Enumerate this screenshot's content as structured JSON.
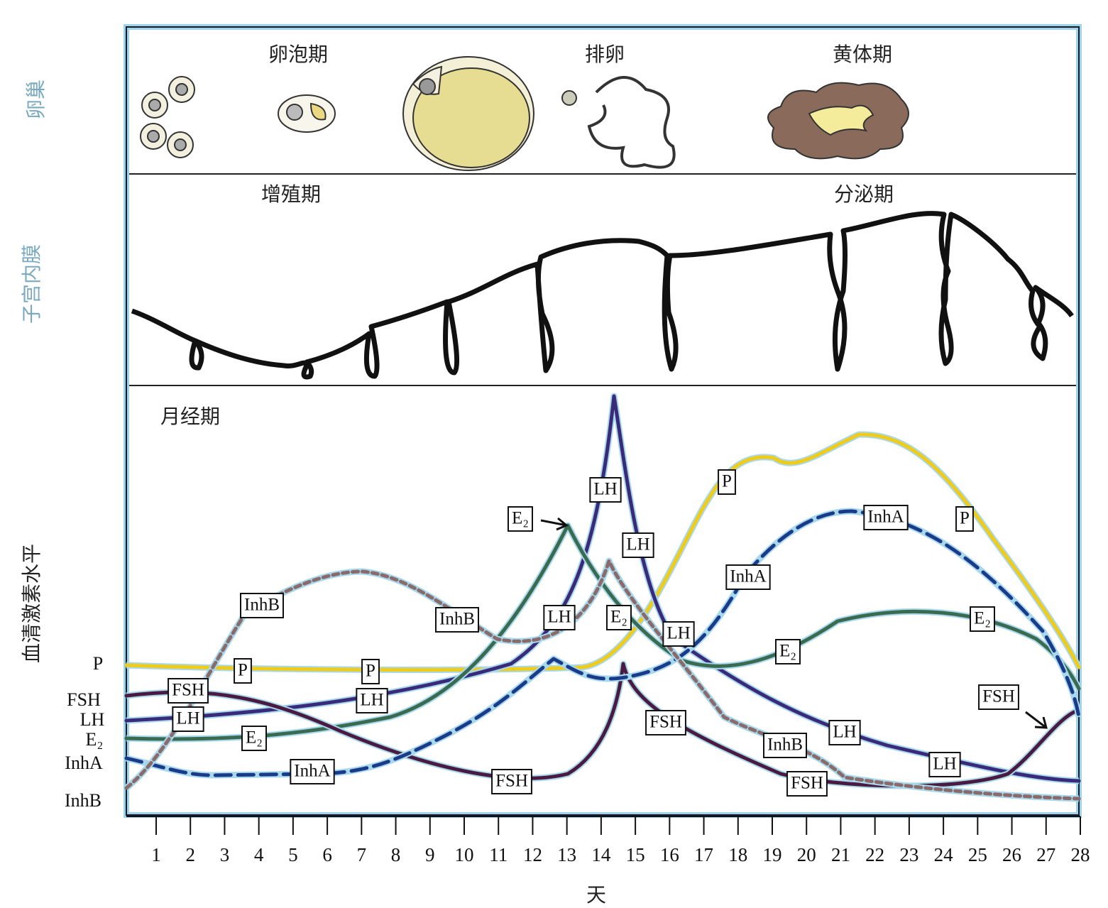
{
  "ovary": {
    "label": "卵巢",
    "phases": [
      "卵泡期",
      "排卵",
      "黄体期"
    ]
  },
  "endometrium": {
    "label": "子宫内膜",
    "phases": [
      "增殖期",
      "分泌期"
    ]
  },
  "hormones": {
    "label": "血清激素水平",
    "phase": "月经期",
    "axis_labels": [
      "P",
      "FSH",
      "LH",
      "E₂",
      "InhA",
      "InhB"
    ],
    "curve_labels": [
      "FSH",
      "LH",
      "E₂",
      "P",
      "P",
      "LH",
      "InhA",
      "InhB",
      "InhB",
      "FSH",
      "LH",
      "E₂",
      "LH",
      "LH",
      "E₂",
      "LH",
      "FSH",
      "P",
      "InhA",
      "InhA",
      "P",
      "E₂",
      "InhB",
      "LH",
      "FSH",
      "LH",
      "E₂",
      "FSH"
    ]
  },
  "x_axis": {
    "label": "天",
    "ticks": [
      1,
      2,
      3,
      4,
      5,
      6,
      7,
      8,
      9,
      10,
      11,
      12,
      13,
      14,
      15,
      16,
      17,
      18,
      19,
      20,
      21,
      22,
      23,
      24,
      25,
      26,
      27,
      28
    ]
  }
}
